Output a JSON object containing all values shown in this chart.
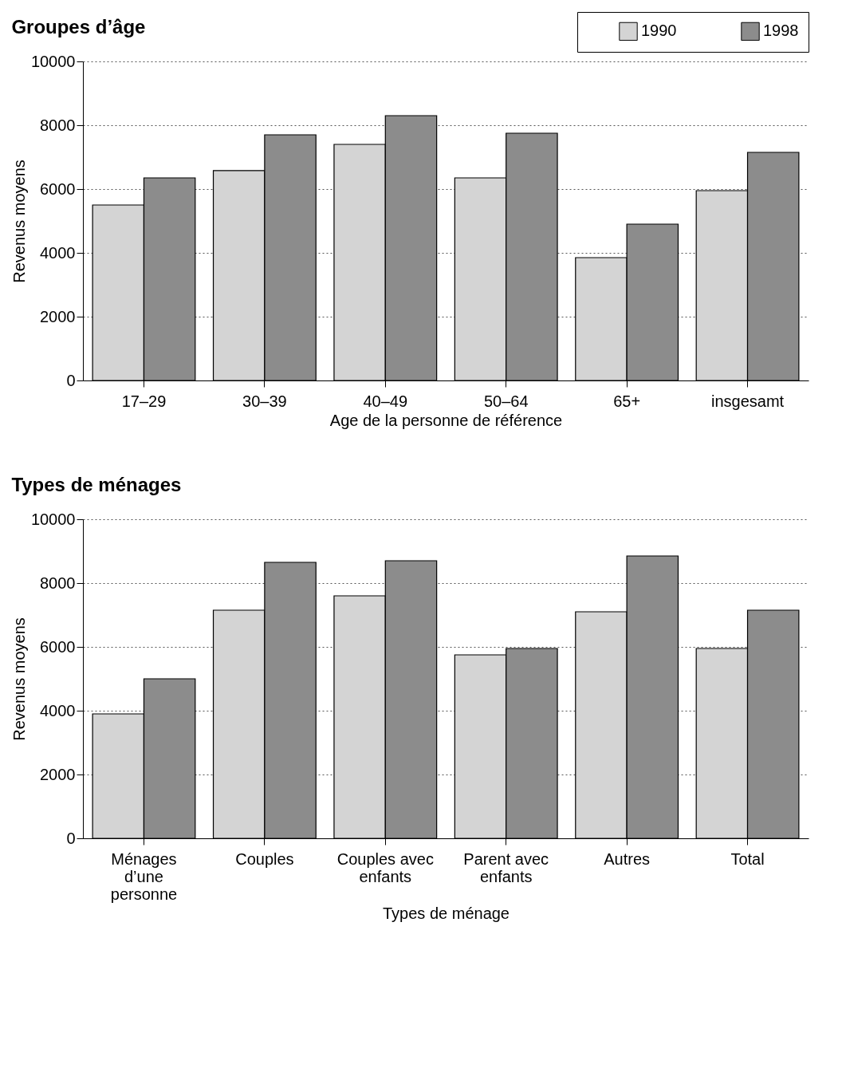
{
  "chart_data": [
    {
      "type": "bar",
      "title": "Groupes d’âge",
      "xlabel": "Age de la personne de référence",
      "ylabel": "Revenus moyens",
      "categories": [
        "17–29",
        "30–39",
        "40–49",
        "50–64",
        "65+",
        "insgesamt"
      ],
      "series": [
        {
          "name": "1990",
          "color": "#d4d4d4",
          "values": [
            5500,
            6580,
            7400,
            6350,
            3850,
            5950
          ]
        },
        {
          "name": "1998",
          "color": "#8c8c8c",
          "values": [
            6350,
            7700,
            8300,
            7750,
            4900,
            7150
          ]
        }
      ],
      "ylim": [
        0,
        10000
      ],
      "yticks": [
        0,
        2000,
        4000,
        6000,
        8000,
        10000
      ],
      "grid": "y",
      "legend": "top right"
    },
    {
      "type": "bar",
      "title": "Types de ménages",
      "xlabel": "Types de ménage",
      "ylabel": "Revenus moyens",
      "categories": [
        "Ménages d’une personne",
        "Couples",
        "Couples avec enfants",
        "Parent avec enfants",
        "Autres",
        "Total"
      ],
      "series": [
        {
          "name": "1990",
          "color": "#d4d4d4",
          "values": [
            3900,
            7150,
            7600,
            5750,
            7100,
            5950
          ]
        },
        {
          "name": "1998",
          "color": "#8c8c8c",
          "values": [
            5000,
            8650,
            8700,
            5950,
            8850,
            7150
          ]
        }
      ],
      "ylim": [
        0,
        10000
      ],
      "yticks": [
        0,
        2000,
        4000,
        6000,
        8000,
        10000
      ],
      "grid": "y",
      "legend": false
    }
  ]
}
